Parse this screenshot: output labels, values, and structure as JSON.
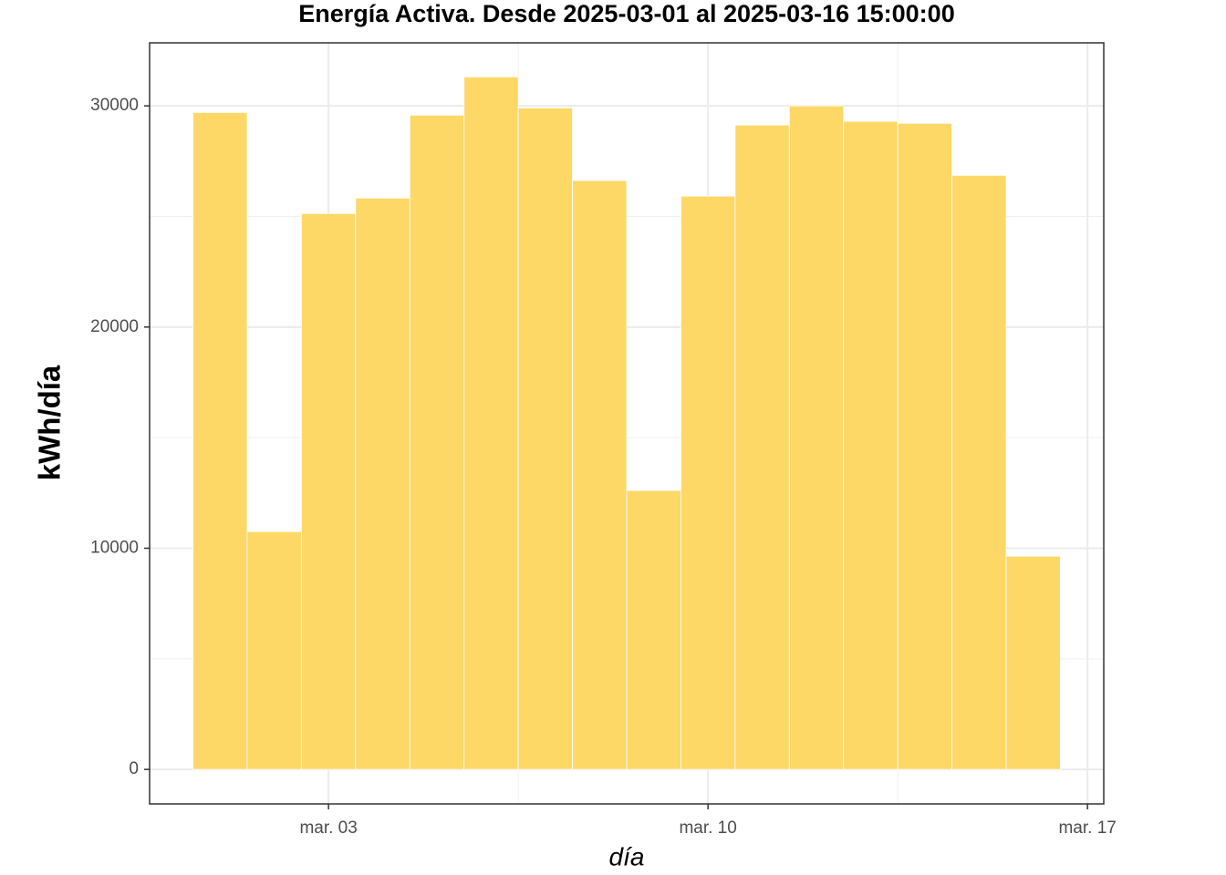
{
  "chart_data": {
    "type": "bar",
    "title": "Energía Activa. Desde  2025-03-01  al  2025-03-16 15:00:00",
    "x_label": "día",
    "y_label": "kWh/día",
    "x": [
      1,
      2,
      3,
      4,
      5,
      6,
      7,
      8,
      9,
      10,
      11,
      12,
      13,
      14,
      15,
      16
    ],
    "values": [
      29700,
      10750,
      25130,
      25830,
      29580,
      31310,
      29910,
      26620,
      12610,
      25920,
      29130,
      30000,
      29300,
      29210,
      26860,
      9640
    ],
    "bar_width": 1,
    "color": "#fdd867",
    "xlim": [
      -0.3,
      17.3
    ],
    "xticks": [
      {
        "value": 3,
        "label": "mar. 03"
      },
      {
        "value": 10,
        "label": "mar. 10"
      },
      {
        "value": 17,
        "label": "mar. 17"
      }
    ],
    "x_minor_grid": [
      6.5,
      13.5
    ],
    "ylim": [
      -1560,
      32850
    ],
    "yticks": [
      0,
      10000,
      20000,
      30000
    ],
    "y_minor_grid": [
      5000,
      15000,
      25000
    ],
    "grid": true
  }
}
